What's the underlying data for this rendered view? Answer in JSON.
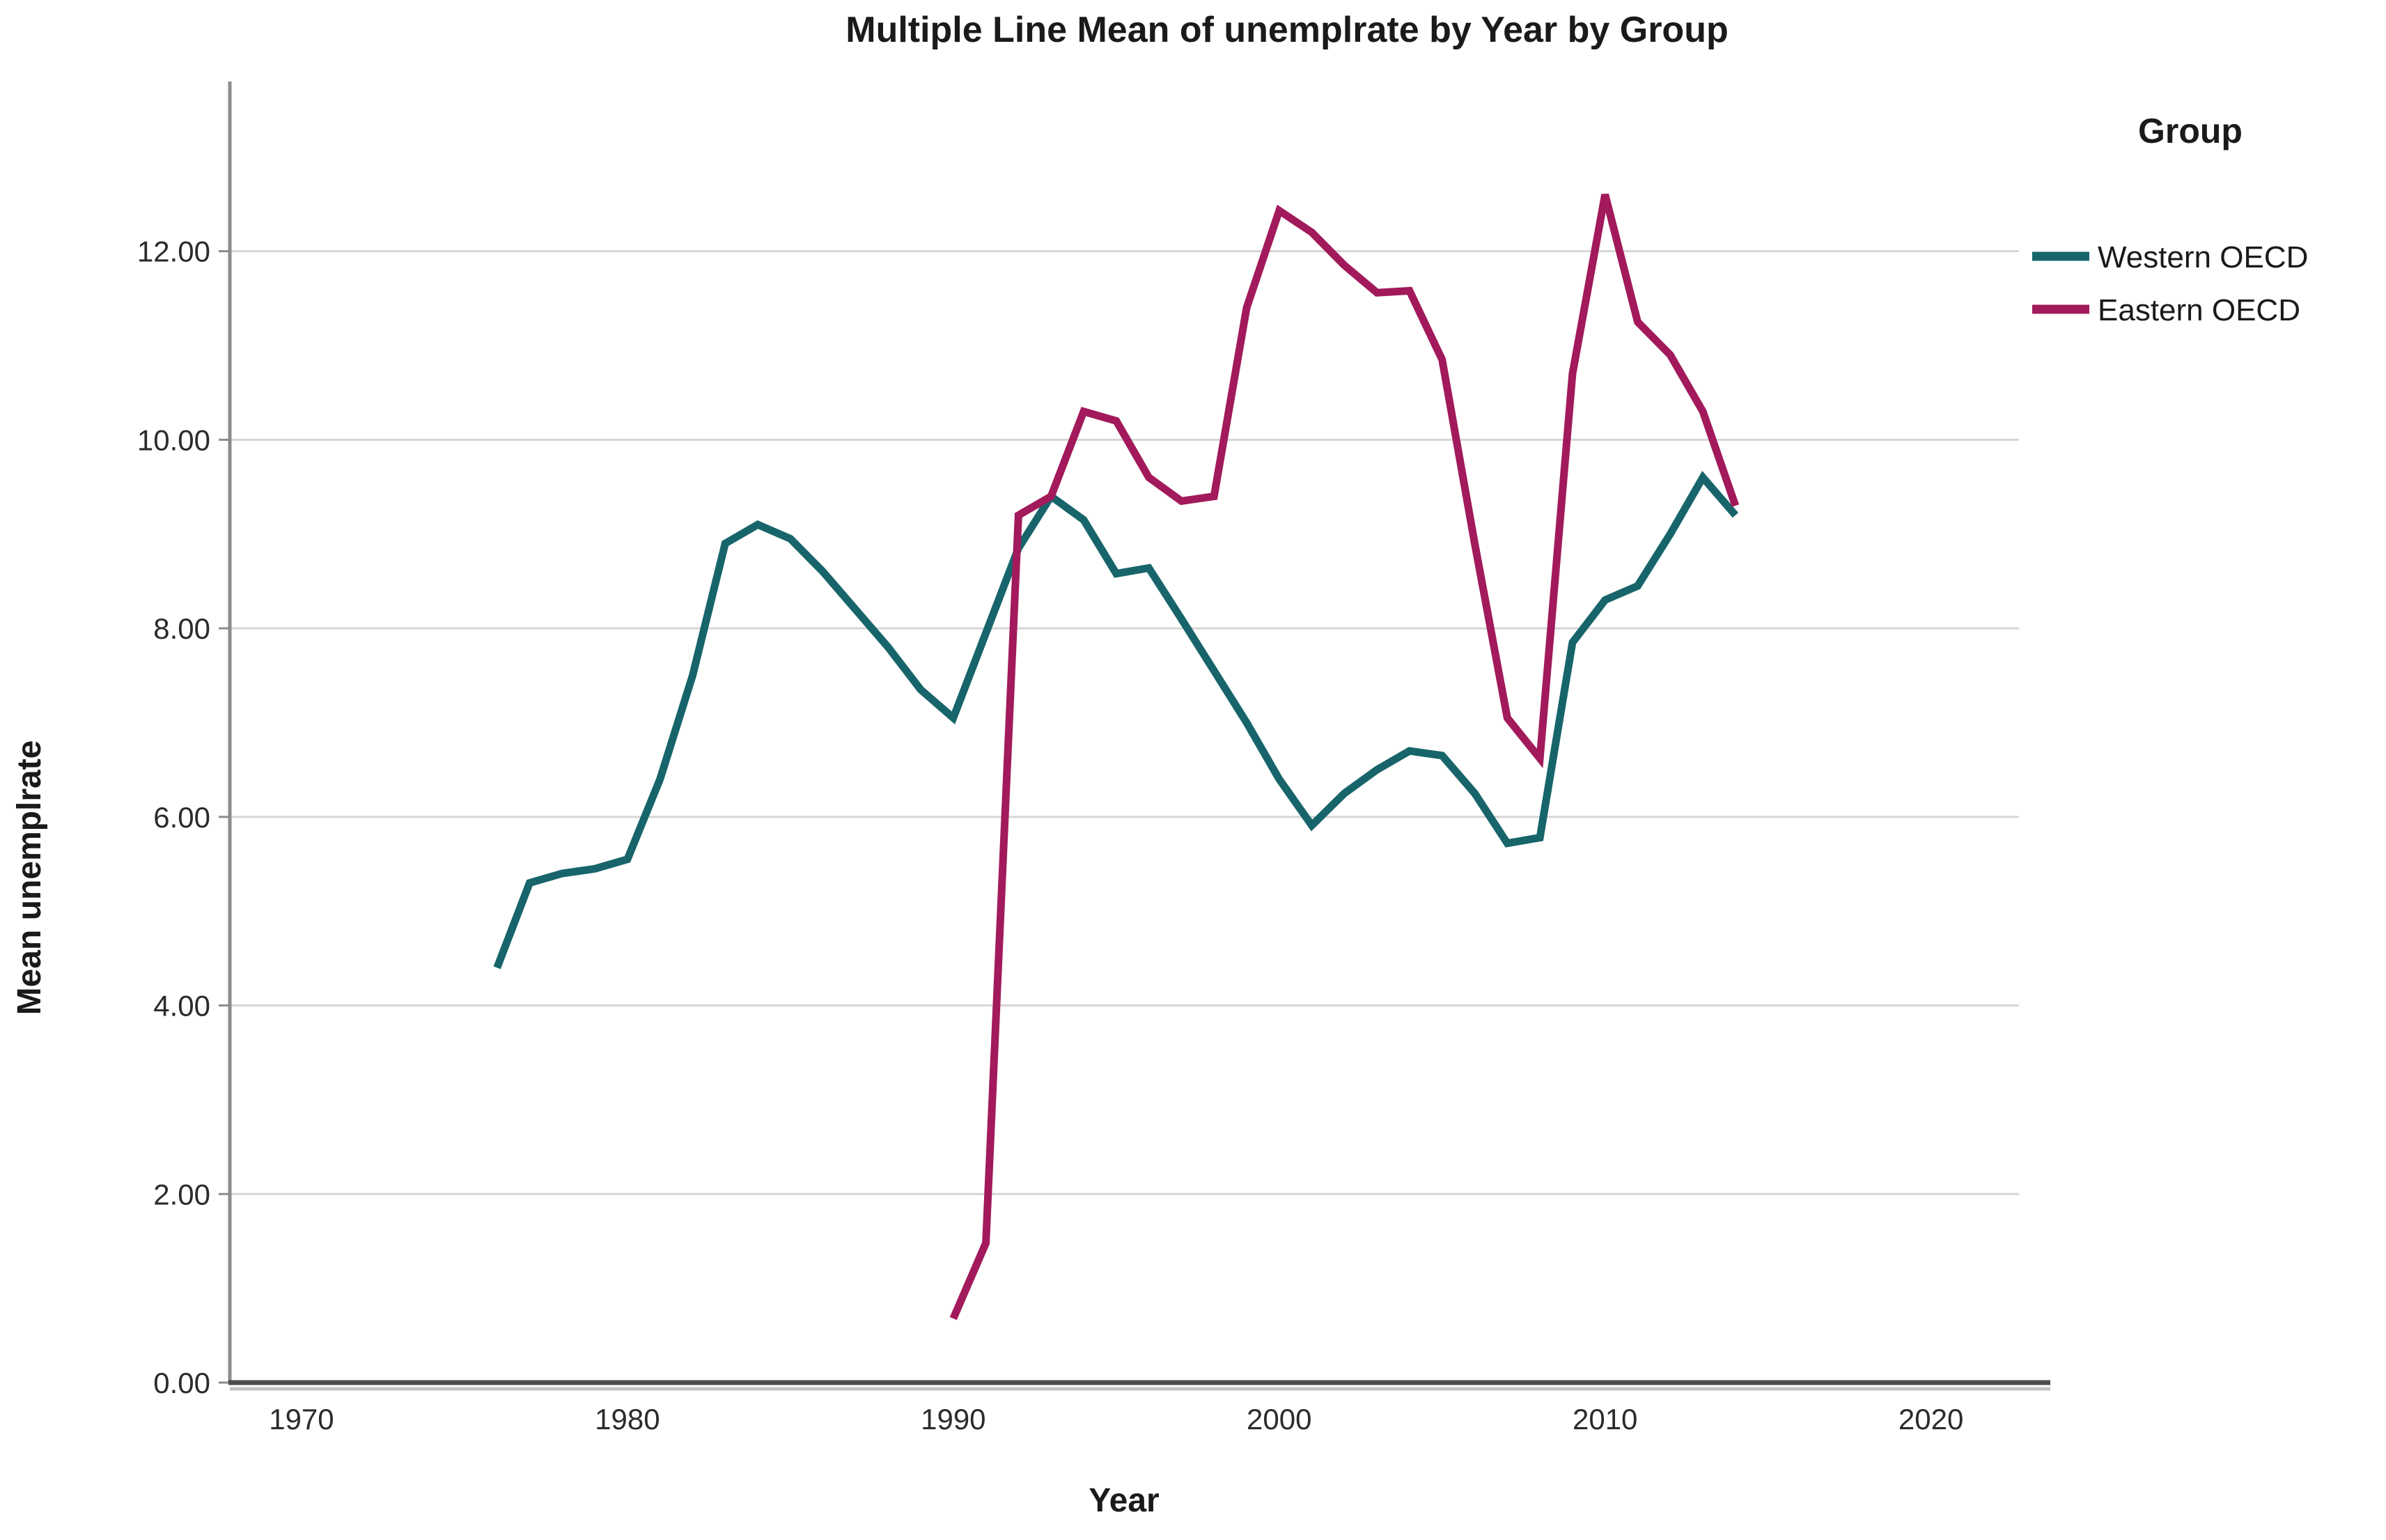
{
  "chart_data": {
    "type": "line",
    "title": "Multiple Line Mean of unemplrate by Year by Group",
    "xlabel": "Year",
    "ylabel": "Mean unemplrate",
    "legend_title": "Group",
    "legend_position": "right",
    "grid": "horizontal-only",
    "x_tick_labels": [
      "1970",
      "1980",
      "1990",
      "2000",
      "2010",
      "2020"
    ],
    "y_tick_labels": [
      "0.00",
      "2.00",
      "4.00",
      "6.00",
      "8.00",
      "10.00",
      "12.00"
    ],
    "xlim": [
      1967.8,
      2022.7
    ],
    "ylim": [
      0,
      13.8
    ],
    "series": [
      {
        "name": "Western OECD",
        "color": "#17656B",
        "x": [
          1976,
          1977,
          1978,
          1979,
          1980,
          1981,
          1982,
          1983,
          1984,
          1985,
          1986,
          1987,
          1988,
          1989,
          1990,
          1991,
          1992,
          1993,
          1994,
          1995,
          1996,
          1997,
          1998,
          1999,
          2000,
          2001,
          2002,
          2003,
          2004,
          2005,
          2006,
          2007,
          2008,
          2009,
          2010,
          2011,
          2012,
          2013,
          2014
        ],
        "values": [
          4.4,
          5.3,
          5.4,
          5.45,
          5.55,
          6.4,
          7.5,
          8.9,
          9.1,
          8.95,
          8.6,
          8.2,
          7.8,
          7.35,
          7.05,
          7.95,
          8.85,
          9.4,
          9.15,
          8.58,
          8.64,
          8.1,
          7.55,
          7.0,
          6.4,
          5.91,
          6.25,
          6.5,
          6.7,
          6.65,
          6.25,
          5.72,
          5.78,
          7.85,
          8.3,
          8.45,
          9.0,
          9.6,
          9.2
        ]
      },
      {
        "name": "Eastern OECD",
        "color": "#A21A5B",
        "x": [
          1990,
          1991,
          1992,
          1993,
          1994,
          1995,
          1996,
          1997,
          1998,
          1999,
          2000,
          2001,
          2002,
          2003,
          2004,
          2005,
          2006,
          2007,
          2008,
          2009,
          2010,
          2011,
          2012,
          2013,
          2014
        ],
        "values": [
          0.68,
          1.48,
          9.2,
          9.4,
          10.3,
          10.2,
          9.6,
          9.35,
          9.4,
          11.4,
          12.43,
          12.2,
          11.85,
          11.56,
          11.58,
          10.85,
          8.9,
          7.05,
          6.62,
          10.7,
          12.6,
          11.25,
          10.9,
          10.3,
          9.3
        ]
      }
    ]
  },
  "colors": {
    "western_line": "#17656B",
    "eastern_line": "#A21A5B",
    "gridline": "#d5d5d5",
    "y_axis": "#8c8c8c",
    "x_axis": "#4d4d4d",
    "x_axis_shadow": "#c4c4c4",
    "text": "#1a1a1a"
  },
  "legend": {
    "title": "Group",
    "items": [
      {
        "label": "Western OECD",
        "color": "#17656B"
      },
      {
        "label": "Eastern OECD",
        "color": "#A21A5B"
      }
    ]
  }
}
